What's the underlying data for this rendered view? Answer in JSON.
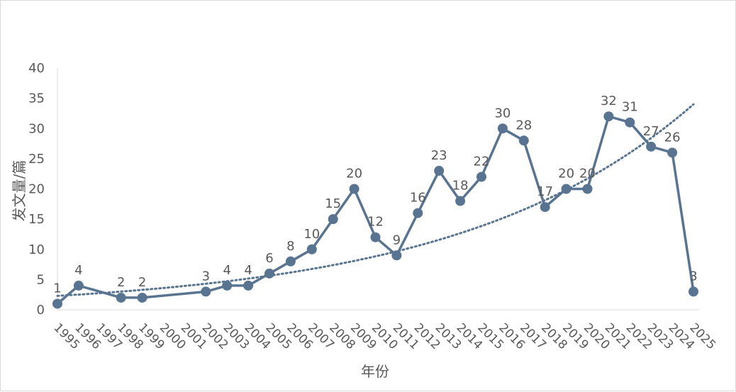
{
  "chart_data": {
    "type": "line",
    "title": "",
    "xlabel": "年份",
    "ylabel": "发文量/篇",
    "ylim": [
      0,
      40
    ],
    "yticks": [
      0,
      5,
      10,
      15,
      20,
      25,
      30,
      35,
      40
    ],
    "categories": [
      "1995",
      "1996",
      "1997",
      "1998",
      "1999",
      "2000",
      "2001",
      "2002",
      "2003",
      "2004",
      "2005",
      "2006",
      "2007",
      "2008",
      "2009",
      "2010",
      "2011",
      "2012",
      "2013",
      "2014",
      "2015",
      "2016",
      "2017",
      "2018",
      "2019",
      "2020",
      "2021",
      "2022",
      "2023",
      "2024",
      "2025"
    ],
    "series": [
      {
        "values": [
          1,
          4,
          null,
          2,
          2,
          null,
          null,
          3,
          4,
          4,
          6,
          8,
          10,
          15,
          20,
          12,
          9,
          16,
          23,
          18,
          22,
          30,
          28,
          17,
          20,
          20,
          32,
          31,
          27,
          26,
          3
        ],
        "color": "#587490",
        "marker": "circle",
        "data_labels": true
      }
    ],
    "trendline": {
      "type": "exponential",
      "style": "dotted",
      "color": "#587490",
      "start": 2.3,
      "end": 34
    },
    "grid": false,
    "legend": "none"
  }
}
